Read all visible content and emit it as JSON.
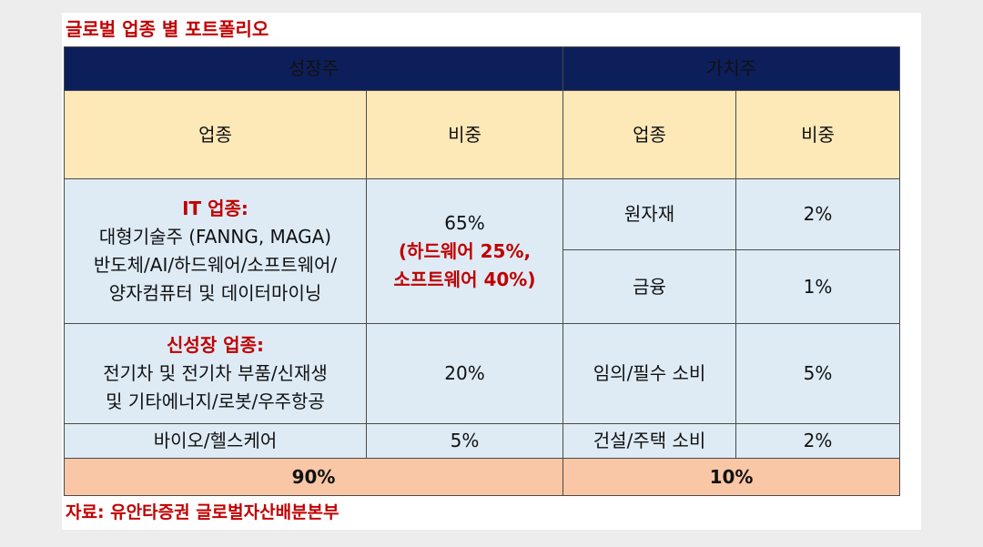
{
  "title": "글로벌 업종 별 포트폴리오",
  "source": "자료: 유안타증권 글로벌자산배분본부",
  "headers": {
    "growth": "성장주",
    "value": "가치주"
  },
  "subheaders": {
    "sector": "업종",
    "weight": "비중"
  },
  "growth_rows": [
    {
      "heading": "IT 업종:",
      "lines": [
        "대형기술주 (FANNG, MAGA)",
        "반도체/AI/하드웨어/소프트웨어/",
        "양자컴퓨터 및 데이터마이닝"
      ],
      "weight": "65%",
      "weight_detail": [
        "(하드웨어 25%,",
        "소프트웨어 40%)"
      ]
    },
    {
      "heading": "신성장 업종:",
      "lines": [
        "전기차 및 전기차 부품/신재생",
        "및 기타에너지/로봇/우주항공"
      ],
      "weight": "20%"
    },
    {
      "heading": "",
      "lines": [
        "바이오/헬스케어"
      ],
      "weight": "5%"
    }
  ],
  "value_rows": [
    {
      "sector": "원자재",
      "weight": "2%"
    },
    {
      "sector": "금융",
      "weight": "1%"
    },
    {
      "sector": "임의/필수 소비",
      "weight": "5%"
    },
    {
      "sector": "건설/주택 소비",
      "weight": "2%"
    }
  ],
  "totals": {
    "growth": "90%",
    "value": "10%"
  }
}
